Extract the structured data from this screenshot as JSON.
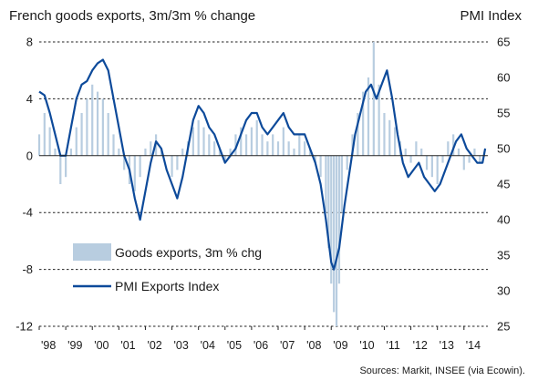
{
  "chart_data": {
    "type": "bar+line",
    "title_left": "French goods exports, 3m/3m % change",
    "title_right": "PMI Index",
    "source": "Sources: Markit, INSEE (via Ecowin).",
    "grid": "horizontal dashed",
    "legend_position": "lower-left",
    "left_axis": {
      "ylim": [
        -12,
        8
      ],
      "ticks": [
        "8",
        "4",
        "0",
        "-4",
        "-8",
        "-12"
      ]
    },
    "right_axis": {
      "ylim": [
        25,
        65
      ],
      "ticks": [
        "65",
        "60",
        "55",
        "50",
        "45",
        "40",
        "35",
        "30",
        "25"
      ]
    },
    "x_range": [
      1998.0,
      2014.9
    ],
    "x_ticks": [
      "'98",
      "'99",
      "'00",
      "'01",
      "'02",
      "'03",
      "'04",
      "'05",
      "'06",
      "'07",
      "'08",
      "'09",
      "'10",
      "'11",
      "'12",
      "'13",
      "'14"
    ],
    "series": [
      {
        "name": "Goods exports, 3m % chg",
        "type": "bar",
        "axis": "left",
        "color": "#b8cde0",
        "points": [
          [
            1998.0,
            1.5
          ],
          [
            1998.2,
            3.0
          ],
          [
            1998.4,
            2.0
          ],
          [
            1998.6,
            0.5
          ],
          [
            1998.8,
            -2.0
          ],
          [
            1999.0,
            -1.5
          ],
          [
            1999.2,
            0.5
          ],
          [
            1999.4,
            2.0
          ],
          [
            1999.6,
            3.0
          ],
          [
            1999.8,
            4.0
          ],
          [
            2000.0,
            5.0
          ],
          [
            2000.2,
            4.5
          ],
          [
            2000.4,
            4.0
          ],
          [
            2000.6,
            3.0
          ],
          [
            2000.8,
            1.5
          ],
          [
            2001.0,
            0.5
          ],
          [
            2001.2,
            -1.0
          ],
          [
            2001.4,
            -2.0
          ],
          [
            2001.6,
            -2.5
          ],
          [
            2001.8,
            -1.5
          ],
          [
            2002.0,
            0.5
          ],
          [
            2002.2,
            1.0
          ],
          [
            2002.4,
            1.5
          ],
          [
            2002.6,
            0.5
          ],
          [
            2002.8,
            0.0
          ],
          [
            2003.0,
            -1.5
          ],
          [
            2003.2,
            -1.0
          ],
          [
            2003.4,
            0.5
          ],
          [
            2003.6,
            1.0
          ],
          [
            2003.8,
            2.0
          ],
          [
            2004.0,
            2.5
          ],
          [
            2004.2,
            2.0
          ],
          [
            2004.4,
            1.5
          ],
          [
            2004.6,
            1.0
          ],
          [
            2004.8,
            0.5
          ],
          [
            2005.0,
            -0.5
          ],
          [
            2005.2,
            0.5
          ],
          [
            2005.4,
            1.5
          ],
          [
            2005.6,
            2.0
          ],
          [
            2005.8,
            1.5
          ],
          [
            2006.0,
            2.0
          ],
          [
            2006.2,
            2.5
          ],
          [
            2006.4,
            1.5
          ],
          [
            2006.6,
            1.0
          ],
          [
            2006.8,
            1.5
          ],
          [
            2007.0,
            1.0
          ],
          [
            2007.2,
            2.0
          ],
          [
            2007.4,
            1.0
          ],
          [
            2007.6,
            0.5
          ],
          [
            2007.8,
            1.5
          ],
          [
            2008.0,
            1.0
          ],
          [
            2008.2,
            0.5
          ],
          [
            2008.4,
            -0.5
          ],
          [
            2008.6,
            -1.5
          ],
          [
            2008.8,
            -4.0
          ],
          [
            2008.9,
            -6.5
          ],
          [
            2009.0,
            -9.0
          ],
          [
            2009.1,
            -11.0
          ],
          [
            2009.2,
            -12.0
          ],
          [
            2009.3,
            -9.0
          ],
          [
            2009.4,
            -4.0
          ],
          [
            2009.6,
            -1.0
          ],
          [
            2009.8,
            1.5
          ],
          [
            2010.0,
            3.0
          ],
          [
            2010.2,
            4.5
          ],
          [
            2010.4,
            5.5
          ],
          [
            2010.6,
            8.0
          ],
          [
            2010.8,
            5.0
          ],
          [
            2011.0,
            3.0
          ],
          [
            2011.2,
            2.5
          ],
          [
            2011.4,
            2.0
          ],
          [
            2011.6,
            1.0
          ],
          [
            2011.8,
            0.5
          ],
          [
            2012.0,
            -0.5
          ],
          [
            2012.2,
            1.0
          ],
          [
            2012.4,
            0.5
          ],
          [
            2012.6,
            -1.0
          ],
          [
            2012.8,
            -1.5
          ],
          [
            2013.0,
            -2.0
          ],
          [
            2013.2,
            -0.5
          ],
          [
            2013.4,
            1.0
          ],
          [
            2013.6,
            1.5
          ],
          [
            2013.8,
            0.5
          ],
          [
            2014.0,
            -1.0
          ],
          [
            2014.2,
            -0.5
          ],
          [
            2014.4,
            0.5
          ],
          [
            2014.6,
            -0.5
          ]
        ]
      },
      {
        "name": "PMI Exports Index",
        "type": "line",
        "axis": "right",
        "color": "#0d4a9a",
        "points": [
          [
            1998.0,
            58
          ],
          [
            1998.2,
            57.5
          ],
          [
            1998.4,
            55
          ],
          [
            1998.6,
            52
          ],
          [
            1998.8,
            49
          ],
          [
            1999.0,
            49
          ],
          [
            1999.2,
            53
          ],
          [
            1999.4,
            57
          ],
          [
            1999.6,
            59
          ],
          [
            1999.8,
            59.5
          ],
          [
            2000.0,
            61
          ],
          [
            2000.2,
            62
          ],
          [
            2000.4,
            62.5
          ],
          [
            2000.6,
            61
          ],
          [
            2000.8,
            57
          ],
          [
            2001.0,
            53
          ],
          [
            2001.2,
            49
          ],
          [
            2001.4,
            47
          ],
          [
            2001.6,
            43
          ],
          [
            2001.8,
            40
          ],
          [
            2002.0,
            44
          ],
          [
            2002.2,
            48
          ],
          [
            2002.4,
            51
          ],
          [
            2002.6,
            50
          ],
          [
            2002.8,
            47
          ],
          [
            2003.0,
            45
          ],
          [
            2003.2,
            43
          ],
          [
            2003.4,
            46
          ],
          [
            2003.6,
            50
          ],
          [
            2003.8,
            54
          ],
          [
            2004.0,
            56
          ],
          [
            2004.2,
            55
          ],
          [
            2004.4,
            53
          ],
          [
            2004.6,
            52
          ],
          [
            2004.8,
            50
          ],
          [
            2005.0,
            48
          ],
          [
            2005.2,
            49
          ],
          [
            2005.4,
            50
          ],
          [
            2005.6,
            52
          ],
          [
            2005.8,
            54
          ],
          [
            2006.0,
            55
          ],
          [
            2006.2,
            55
          ],
          [
            2006.4,
            53
          ],
          [
            2006.6,
            52
          ],
          [
            2006.8,
            53
          ],
          [
            2007.0,
            54
          ],
          [
            2007.2,
            55
          ],
          [
            2007.4,
            53
          ],
          [
            2007.6,
            52
          ],
          [
            2007.8,
            52
          ],
          [
            2008.0,
            52
          ],
          [
            2008.2,
            50
          ],
          [
            2008.4,
            48
          ],
          [
            2008.6,
            45
          ],
          [
            2008.8,
            40
          ],
          [
            2009.0,
            34
          ],
          [
            2009.1,
            33
          ],
          [
            2009.3,
            36
          ],
          [
            2009.5,
            42
          ],
          [
            2009.7,
            47
          ],
          [
            2009.9,
            52
          ],
          [
            2010.1,
            55
          ],
          [
            2010.3,
            58
          ],
          [
            2010.5,
            59
          ],
          [
            2010.7,
            57
          ],
          [
            2010.9,
            59
          ],
          [
            2011.1,
            61
          ],
          [
            2011.3,
            57
          ],
          [
            2011.5,
            52
          ],
          [
            2011.7,
            48
          ],
          [
            2011.9,
            46
          ],
          [
            2012.1,
            47
          ],
          [
            2012.3,
            48
          ],
          [
            2012.5,
            46
          ],
          [
            2012.7,
            45
          ],
          [
            2012.9,
            44
          ],
          [
            2013.1,
            45
          ],
          [
            2013.3,
            47
          ],
          [
            2013.5,
            49
          ],
          [
            2013.7,
            51
          ],
          [
            2013.9,
            52
          ],
          [
            2014.1,
            50
          ],
          [
            2014.3,
            49
          ],
          [
            2014.5,
            48
          ],
          [
            2014.7,
            48
          ],
          [
            2014.8,
            50
          ]
        ]
      }
    ]
  }
}
